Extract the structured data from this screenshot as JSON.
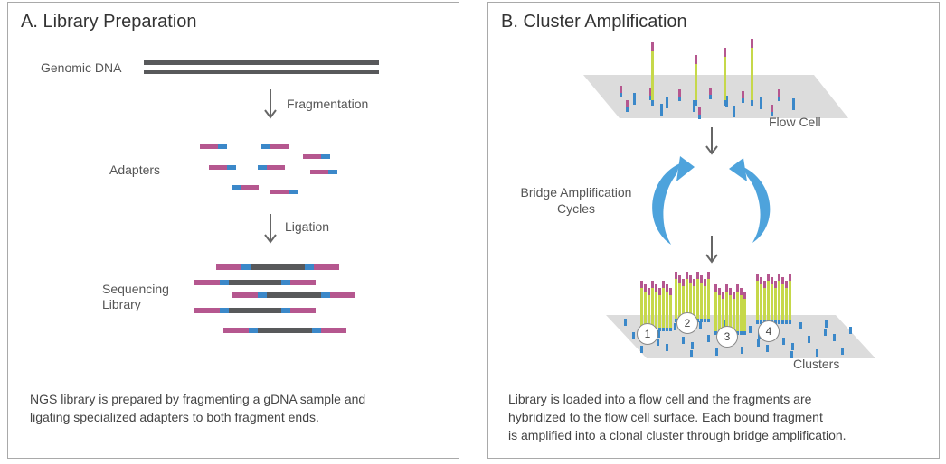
{
  "panel_a": {
    "title": "A. Library Preparation",
    "labels": {
      "genomic_dna": "Genomic DNA",
      "fragmentation": "Fragmentation",
      "adapters": "Adapters",
      "ligation": "Ligation",
      "sequencing_library": [
        "Sequencing",
        "Library"
      ]
    },
    "caption": [
      "NGS library is prepared by fragmenting a gDNA sample and",
      "ligating specialized adapters to both fragment ends."
    ]
  },
  "panel_b": {
    "title": "B. Cluster Amplification",
    "labels": {
      "flow_cell": "Flow Cell",
      "bridge_amplification": [
        "Bridge Amplification",
        "Cycles"
      ],
      "clusters": "Clusters"
    },
    "cluster_numbers": [
      "1",
      "2",
      "3",
      "4"
    ],
    "caption": [
      "Library is loaded into a flow cell and the fragments are",
      "hybridized to the flow cell surface. Each bound fragment",
      "is amplified into a clonal cluster through bridge amplification."
    ]
  },
  "colors": {
    "dna": "#58595b",
    "adapter_pink": "#b5578f",
    "adapter_blue": "#3b88c9",
    "strand_green": "#c6d84a",
    "flow_cell": "#dcdcdc",
    "cycle_arrow": "#4ea3dc",
    "arrow": "#666666"
  }
}
